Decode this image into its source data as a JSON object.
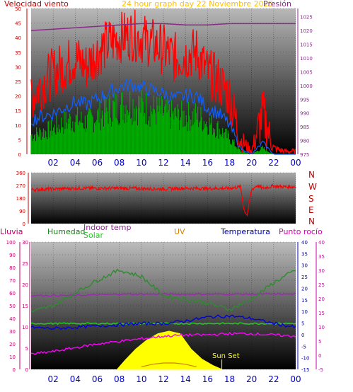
{
  "header": {
    "wind_label": "Velocidad viento",
    "title": "24 hour graph day   22 Noviembre 2025",
    "pressure_label": "Presión"
  },
  "middle": {
    "compass": [
      "N",
      "W",
      "S",
      "E",
      "N"
    ]
  },
  "bottom_header": {
    "rain": "Lluvia",
    "humidity": "Humedad",
    "indoor": "Indoor temp",
    "solar": "Solar",
    "uv": "UV",
    "temperature": "Temperatura",
    "dewpoint": "Punto rocío"
  },
  "annotation": {
    "sunset": "Sun Set"
  },
  "colors": {
    "wind_gust": "#ff0000",
    "wind_avg": "#00aa00",
    "wind_mean": "#1060ff",
    "pressure": "#8a2a8a",
    "direction": "#ff0000",
    "humidity": "#2e8b2e",
    "indoor_temp": "#9a2ab0",
    "solar": "#ffff00",
    "uv": "#d08000",
    "temperature": "#0000dd",
    "dewpoint": "#ff00ff",
    "axis_pink": "#c0006a",
    "axis_green": "#1f7a1f"
  },
  "chart_data": [
    {
      "type": "line",
      "x_ticks": [
        "02",
        "04",
        "06",
        "08",
        "10",
        "12",
        "14",
        "16",
        "18",
        "20",
        "22",
        "00"
      ],
      "y_left": {
        "label": "Velocidad viento",
        "ylim": [
          0,
          50
        ],
        "ticks": [
          0,
          5,
          10,
          15,
          20,
          25,
          30,
          35,
          40,
          45,
          50
        ]
      },
      "y_right": {
        "label": "Presión",
        "ylim": [
          975,
          1028
        ],
        "ticks": [
          975,
          980,
          985,
          990,
          995,
          1000,
          1005,
          1010,
          1015,
          1020,
          1025
        ]
      },
      "series": [
        {
          "name": "gust",
          "axis": "left",
          "x": [
            0,
            1,
            2,
            3,
            4,
            5,
            6,
            7,
            8,
            9,
            10,
            11,
            12,
            13,
            14,
            15,
            16,
            17,
            18,
            19,
            20,
            21,
            22,
            23,
            24
          ],
          "y": [
            20,
            24,
            28,
            30,
            33,
            30,
            35,
            38,
            40,
            41,
            40,
            38,
            36,
            33,
            34,
            35,
            28,
            25,
            20,
            5,
            1,
            14,
            2,
            1,
            1
          ]
        },
        {
          "name": "mean",
          "axis": "left",
          "x": [
            0,
            1,
            2,
            3,
            4,
            5,
            6,
            7,
            8,
            9,
            10,
            11,
            12,
            13,
            14,
            15,
            16,
            17,
            18,
            19,
            20,
            21,
            22,
            23,
            24
          ],
          "y": [
            12,
            13,
            14,
            16,
            18,
            17,
            19,
            21,
            23,
            24,
            23,
            22,
            21,
            19,
            20,
            20,
            16,
            14,
            10,
            2,
            0,
            4,
            0,
            0,
            0
          ]
        },
        {
          "name": "average",
          "axis": "left",
          "x": [
            0,
            1,
            2,
            3,
            4,
            5,
            6,
            7,
            8,
            9,
            10,
            11,
            12,
            13,
            14,
            15,
            16,
            17,
            18,
            19,
            20,
            21,
            22,
            23,
            24
          ],
          "y": [
            6,
            7,
            8,
            10,
            11,
            10,
            12,
            14,
            15,
            16,
            15,
            14,
            13,
            12,
            12,
            12,
            10,
            8,
            5,
            1,
            0,
            2,
            0,
            0,
            0
          ]
        },
        {
          "name": "pressure",
          "axis": "right",
          "x": [
            0,
            2,
            4,
            6,
            8,
            10,
            12,
            14,
            16,
            18,
            20,
            22,
            24
          ],
          "y": [
            1020,
            1020.5,
            1021,
            1021.5,
            1022,
            1022.5,
            1022.5,
            1022,
            1022,
            1022.5,
            1022.5,
            1022.5,
            1022.5
          ]
        }
      ]
    },
    {
      "type": "line",
      "y_left": {
        "ylim": [
          0,
          360
        ],
        "ticks": [
          0,
          90,
          180,
          270,
          360
        ]
      },
      "series": [
        {
          "name": "direction",
          "x": [
            0,
            2,
            4,
            6,
            8,
            10,
            12,
            14,
            16,
            18,
            19,
            19.3,
            19.6,
            20,
            20.5,
            21,
            22,
            23,
            24
          ],
          "y": [
            240,
            245,
            250,
            250,
            250,
            248,
            245,
            250,
            248,
            250,
            260,
            100,
            60,
            240,
            270,
            250,
            265,
            260,
            260
          ]
        }
      ]
    },
    {
      "type": "line",
      "x_ticks": [
        "02",
        "04",
        "06",
        "08",
        "10",
        "12",
        "14",
        "16",
        "18",
        "20",
        "22",
        "00"
      ],
      "y_rain": {
        "label": "Lluvia",
        "ylim": [
          0,
          100
        ],
        "ticks": [
          0,
          10,
          20,
          30,
          40,
          50,
          60,
          70,
          80,
          90,
          100
        ]
      },
      "y_humidity": {
        "ylim": [
          0,
          30
        ],
        "ticks": [
          0,
          5,
          10,
          15,
          20,
          25,
          30
        ]
      },
      "y_temp": {
        "label": "Temperatura",
        "ylim": [
          -15,
          40
        ],
        "ticks": [
          -15,
          -10,
          -5,
          0,
          5,
          10,
          15,
          20,
          25,
          30,
          35,
          40
        ]
      },
      "y_dewpoint": {
        "label": "Punto rocío",
        "ylim": [
          -5,
          40
        ],
        "ticks": [
          -5,
          0,
          5,
          10,
          15,
          20,
          25,
          30,
          35,
          40
        ]
      },
      "series": [
        {
          "name": "humidity",
          "axis": "rain",
          "x": [
            0,
            2,
            4,
            6,
            8,
            10,
            12,
            14,
            16,
            18,
            20,
            22,
            24
          ],
          "y": [
            45,
            50,
            60,
            70,
            78,
            73,
            58,
            55,
            52,
            47,
            55,
            68,
            78
          ]
        },
        {
          "name": "indoor_temp",
          "axis": "rain",
          "x": [
            0,
            4,
            8,
            12,
            16,
            20,
            24
          ],
          "y": [
            58,
            58,
            59,
            59,
            59,
            59,
            59
          ]
        },
        {
          "name": "solar_line",
          "axis": "rain",
          "x": [
            0,
            4,
            8,
            12,
            16,
            20,
            24
          ],
          "y": [
            36,
            36,
            36,
            36,
            36,
            36,
            36
          ]
        },
        {
          "name": "temperature",
          "axis": "rain",
          "x": [
            0,
            2,
            4,
            6,
            8,
            10,
            12,
            14,
            16,
            18,
            20,
            22,
            24
          ],
          "y": [
            33,
            32,
            33,
            34,
            35,
            36,
            36,
            38,
            41,
            42,
            40,
            36,
            33
          ]
        },
        {
          "name": "dewpoint",
          "axis": "rain",
          "x": [
            0,
            2,
            4,
            6,
            8,
            10,
            12,
            14,
            16,
            18,
            20,
            22,
            24
          ],
          "y": [
            12,
            14,
            17,
            20,
            22,
            24,
            26,
            27,
            27,
            28,
            28,
            27,
            26
          ]
        },
        {
          "name": "solar",
          "axis": "rain",
          "x": [
            7.8,
            8.5,
            9.5,
            10.5,
            11.5,
            12.5,
            13.5,
            14.5,
            15.5,
            16.5,
            17.3
          ],
          "y": [
            0,
            7,
            16,
            23,
            28,
            30,
            28,
            16,
            8,
            3,
            0
          ]
        },
        {
          "name": "uv",
          "axis": "rain",
          "x": [
            10,
            11,
            12,
            13,
            14,
            15
          ],
          "y": [
            2,
            4,
            5,
            5,
            4,
            2
          ]
        }
      ]
    }
  ]
}
